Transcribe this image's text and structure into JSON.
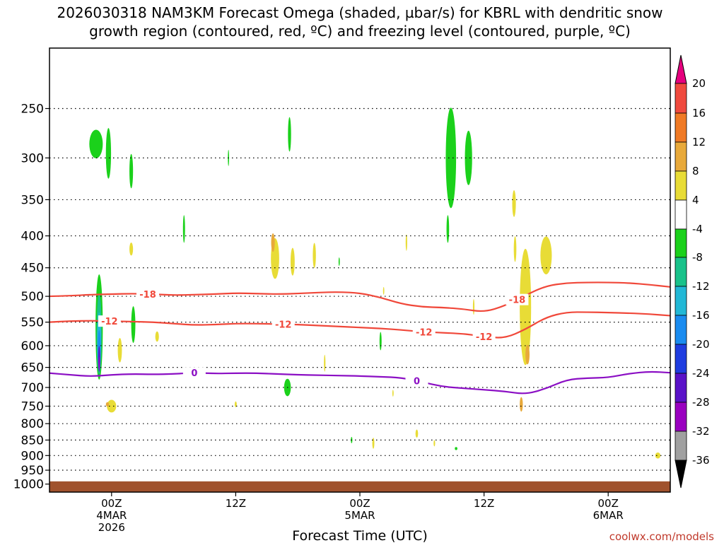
{
  "title": {
    "line1": "2026030318 NAM3KM Forecast Omega (shaded, µbar/s) for KBRL with dendritic snow",
    "line2": "growth region (contoured, red, ºC) and freezing level (contoured, purple, ºC)"
  },
  "credit": "coolwx.com/models",
  "chart_data": {
    "type": "heatmap",
    "xlabel": "Forecast Time (UTC)",
    "x_range_hours": [
      -6,
      54
    ],
    "y_scale": "pressure (inverted, log-like)",
    "y_range_hpa": [
      200,
      1030
    ],
    "y_ticks": [
      {
        "p": 250,
        "label": "250"
      },
      {
        "p": 300,
        "label": "300"
      },
      {
        "p": 350,
        "label": "350"
      },
      {
        "p": 400,
        "label": "400"
      },
      {
        "p": 450,
        "label": "450"
      },
      {
        "p": 500,
        "label": "500"
      },
      {
        "p": 550,
        "label": "550"
      },
      {
        "p": 600,
        "label": "600"
      },
      {
        "p": 650,
        "label": "650"
      },
      {
        "p": 700,
        "label": "700"
      },
      {
        "p": 750,
        "label": "750"
      },
      {
        "p": 800,
        "label": "800"
      },
      {
        "p": 850,
        "label": "850"
      },
      {
        "p": 900,
        "label": "900"
      },
      {
        "p": 950,
        "label": "950"
      },
      {
        "p": 1000,
        "label": "1000"
      }
    ],
    "x_ticks": [
      {
        "h": 0,
        "lines": [
          "00Z",
          "4MAR",
          "2026"
        ]
      },
      {
        "h": 12,
        "lines": [
          "12Z"
        ]
      },
      {
        "h": 24,
        "lines": [
          "00Z",
          "5MAR"
        ]
      },
      {
        "h": 36,
        "lines": [
          "12Z"
        ]
      },
      {
        "h": 48,
        "lines": [
          "00Z",
          "6MAR"
        ]
      }
    ],
    "grid": "dotted horizontal lines at pressure ticks",
    "ground_level_hpa": 990,
    "ground_color": "#a0522d",
    "colorbar": {
      "labels": [
        "20",
        "16",
        "12",
        "8",
        "4",
        "-4",
        "-8",
        "-12",
        "-16",
        "-20",
        "-24",
        "-28",
        "-32",
        "-36"
      ],
      "bins": [
        {
          "from": 20,
          "to": 99,
          "color": "#e6007e"
        },
        {
          "from": 16,
          "to": 20,
          "color": "#f04a3e"
        },
        {
          "from": 12,
          "to": 16,
          "color": "#f07a25"
        },
        {
          "from": 8,
          "to": 12,
          "color": "#e8a93a"
        },
        {
          "from": 4,
          "to": 8,
          "color": "#e8dc36"
        },
        {
          "from": -4,
          "to": 4,
          "color": "#ffffff"
        },
        {
          "from": -8,
          "to": -4,
          "color": "#1bd11b"
        },
        {
          "from": -12,
          "to": -8,
          "color": "#19c28a"
        },
        {
          "from": -16,
          "to": -12,
          "color": "#22b8d6"
        },
        {
          "from": -20,
          "to": -16,
          "color": "#1a8cf0"
        },
        {
          "from": -24,
          "to": -20,
          "color": "#1f3de0"
        },
        {
          "from": -28,
          "to": -24,
          "color": "#5a12c8"
        },
        {
          "from": -32,
          "to": -28,
          "color": "#9a00c0"
        },
        {
          "from": -36,
          "to": -32,
          "color": "#a0a0a0"
        },
        {
          "from": -99,
          "to": -36,
          "color": "#000000"
        }
      ]
    },
    "omega_regions": [
      {
        "h": -1.2,
        "p": 560,
        "dh": 0.7,
        "dp": 215,
        "value": -6
      },
      {
        "h": -1.2,
        "p": 575,
        "dh": 0.5,
        "dp": 170,
        "value": -10
      },
      {
        "h": -1.2,
        "p": 590,
        "dh": 0.38,
        "dp": 125,
        "value": -14
      },
      {
        "h": -1.2,
        "p": 610,
        "dh": 0.28,
        "dp": 90,
        "value": -18
      },
      {
        "h": -1.2,
        "p": 630,
        "dh": 0.2,
        "dp": 60,
        "value": -26
      },
      {
        "h": -1.2,
        "p": 640,
        "dh": 0.12,
        "dp": 30,
        "value": -30
      },
      {
        "h": -1.5,
        "p": 285,
        "dh": 1.3,
        "dp": 30,
        "value": -6
      },
      {
        "h": -0.3,
        "p": 295,
        "dh": 0.5,
        "dp": 55,
        "value": -6
      },
      {
        "h": 1.9,
        "p": 315,
        "dh": 0.35,
        "dp": 40,
        "value": -6
      },
      {
        "h": 2.1,
        "p": 555,
        "dh": 0.4,
        "dp": 75,
        "value": -6
      },
      {
        "h": 0.8,
        "p": 610,
        "dh": 0.4,
        "dp": 55,
        "value": 5
      },
      {
        "h": 1.9,
        "p": 420,
        "dh": 0.35,
        "dp": 20,
        "value": 5
      },
      {
        "h": 0.0,
        "p": 750,
        "dh": 0.9,
        "dp": 35,
        "value": 5
      },
      {
        "h": -0.4,
        "p": 745,
        "dh": 0.3,
        "dp": 12,
        "value": 9
      },
      {
        "h": 7.0,
        "p": 390,
        "dh": 0.2,
        "dp": 40,
        "value": -6
      },
      {
        "h": 4.4,
        "p": 580,
        "dh": 0.35,
        "dp": 22,
        "value": 5
      },
      {
        "h": 12.0,
        "p": 745,
        "dh": 0.2,
        "dp": 16,
        "value": 5
      },
      {
        "h": 15.8,
        "p": 435,
        "dh": 0.8,
        "dp": 65,
        "value": 5
      },
      {
        "h": 15.6,
        "p": 410,
        "dh": 0.35,
        "dp": 28,
        "value": 9
      },
      {
        "h": 17.5,
        "p": 440,
        "dh": 0.4,
        "dp": 45,
        "value": 5
      },
      {
        "h": 19.6,
        "p": 430,
        "dh": 0.3,
        "dp": 40,
        "value": 5
      },
      {
        "h": 17.2,
        "p": 275,
        "dh": 0.3,
        "dp": 35,
        "value": -6
      },
      {
        "h": 11.3,
        "p": 300,
        "dh": 0.12,
        "dp": 18,
        "value": -6
      },
      {
        "h": 17.0,
        "p": 700,
        "dh": 0.65,
        "dp": 45,
        "value": -6
      },
      {
        "h": 20.6,
        "p": 640,
        "dh": 0.15,
        "dp": 40,
        "value": 5
      },
      {
        "h": 22.0,
        "p": 440,
        "dh": 0.12,
        "dp": 14,
        "value": -6
      },
      {
        "h": 26.3,
        "p": 490,
        "dh": 0.12,
        "dp": 14,
        "value": 5
      },
      {
        "h": 26.0,
        "p": 590,
        "dh": 0.2,
        "dp": 40,
        "value": -6
      },
      {
        "h": 28.5,
        "p": 410,
        "dh": 0.15,
        "dp": 25,
        "value": 5
      },
      {
        "h": 27.2,
        "p": 715,
        "dh": 0.12,
        "dp": 18,
        "value": 5
      },
      {
        "h": 25.3,
        "p": 860,
        "dh": 0.2,
        "dp": 35,
        "value": 5
      },
      {
        "h": 23.2,
        "p": 850,
        "dh": 0.15,
        "dp": 20,
        "value": -6
      },
      {
        "h": 29.5,
        "p": 830,
        "dh": 0.25,
        "dp": 25,
        "value": 5
      },
      {
        "h": 31.2,
        "p": 860,
        "dh": 0.15,
        "dp": 20,
        "value": 5
      },
      {
        "h": 33.3,
        "p": 877,
        "dh": 0.25,
        "dp": 10,
        "value": -6
      },
      {
        "h": 32.8,
        "p": 300,
        "dh": 1.0,
        "dp": 110,
        "value": -6
      },
      {
        "h": 34.5,
        "p": 300,
        "dh": 0.7,
        "dp": 60,
        "value": -6
      },
      {
        "h": 32.5,
        "p": 390,
        "dh": 0.25,
        "dp": 40,
        "value": -6
      },
      {
        "h": 40.0,
        "p": 520,
        "dh": 1.1,
        "dp": 220,
        "value": 5
      },
      {
        "h": 40.2,
        "p": 620,
        "dh": 0.4,
        "dp": 45,
        "value": 9
      },
      {
        "h": 39.6,
        "p": 745,
        "dh": 0.3,
        "dp": 40,
        "value": 9
      },
      {
        "h": 42.0,
        "p": 430,
        "dh": 1.1,
        "dp": 60,
        "value": 5
      },
      {
        "h": 38.9,
        "p": 355,
        "dh": 0.35,
        "dp": 35,
        "value": 5
      },
      {
        "h": 35.0,
        "p": 520,
        "dh": 0.15,
        "dp": 30,
        "value": 5
      },
      {
        "h": 39.0,
        "p": 420,
        "dh": 0.25,
        "dp": 40,
        "value": 5
      },
      {
        "h": 52.8,
        "p": 900,
        "dh": 0.5,
        "dp": 20,
        "value": 5
      }
    ],
    "contours": [
      {
        "label": "-18",
        "color": "#f0483a",
        "h": [
          -6,
          -4,
          -2,
          0,
          2,
          4,
          6,
          8,
          10,
          12,
          14,
          16,
          18,
          20,
          22,
          24,
          26,
          28,
          30,
          32,
          34,
          36,
          38,
          40,
          42,
          44,
          46,
          48,
          50,
          52,
          54
        ],
        "p": [
          500,
          499,
          497,
          496,
          495,
          496,
          498,
          497,
          496,
          494,
          495,
          496,
          495,
          493,
          492,
          494,
          502,
          514,
          520,
          521,
          524,
          530,
          518,
          498,
          481,
          476,
          475,
          475,
          476,
          479,
          483
        ],
        "label_h": [
          3.5,
          39.2
        ]
      },
      {
        "label": "-12",
        "color": "#f0483a",
        "h": [
          -6,
          -4,
          -2,
          0,
          2,
          4,
          6,
          8,
          10,
          12,
          14,
          16,
          18,
          20,
          22,
          24,
          26,
          28,
          30,
          32,
          34,
          36,
          38,
          40,
          42,
          44,
          46,
          48,
          50,
          52,
          54
        ],
        "p": [
          550,
          548,
          547,
          548,
          549,
          550,
          553,
          556,
          555,
          553,
          553,
          554,
          555,
          557,
          559,
          561,
          563,
          566,
          570,
          572,
          574,
          580,
          584,
          565,
          540,
          530,
          530,
          531,
          532,
          534,
          537
        ],
        "label_h": [
          -0.2,
          16.6,
          30.2,
          36.0
        ]
      },
      {
        "label": "0",
        "color": "#8b0fc4",
        "h": [
          -6,
          -4,
          -2,
          0,
          2,
          4,
          6,
          8,
          10,
          12,
          14,
          16,
          18,
          20,
          22,
          24,
          26,
          28,
          30,
          32,
          34,
          36,
          38,
          40,
          42,
          44,
          46,
          48,
          50,
          52,
          54
        ],
        "p": [
          664,
          668,
          672,
          668,
          666,
          667,
          666,
          663,
          665,
          664,
          664,
          666,
          668,
          669,
          670,
          671,
          673,
          675,
          686,
          698,
          702,
          706,
          710,
          718,
          703,
          680,
          676,
          675,
          665,
          660,
          663
        ],
        "label_h": [
          8.0,
          29.5
        ]
      }
    ]
  }
}
